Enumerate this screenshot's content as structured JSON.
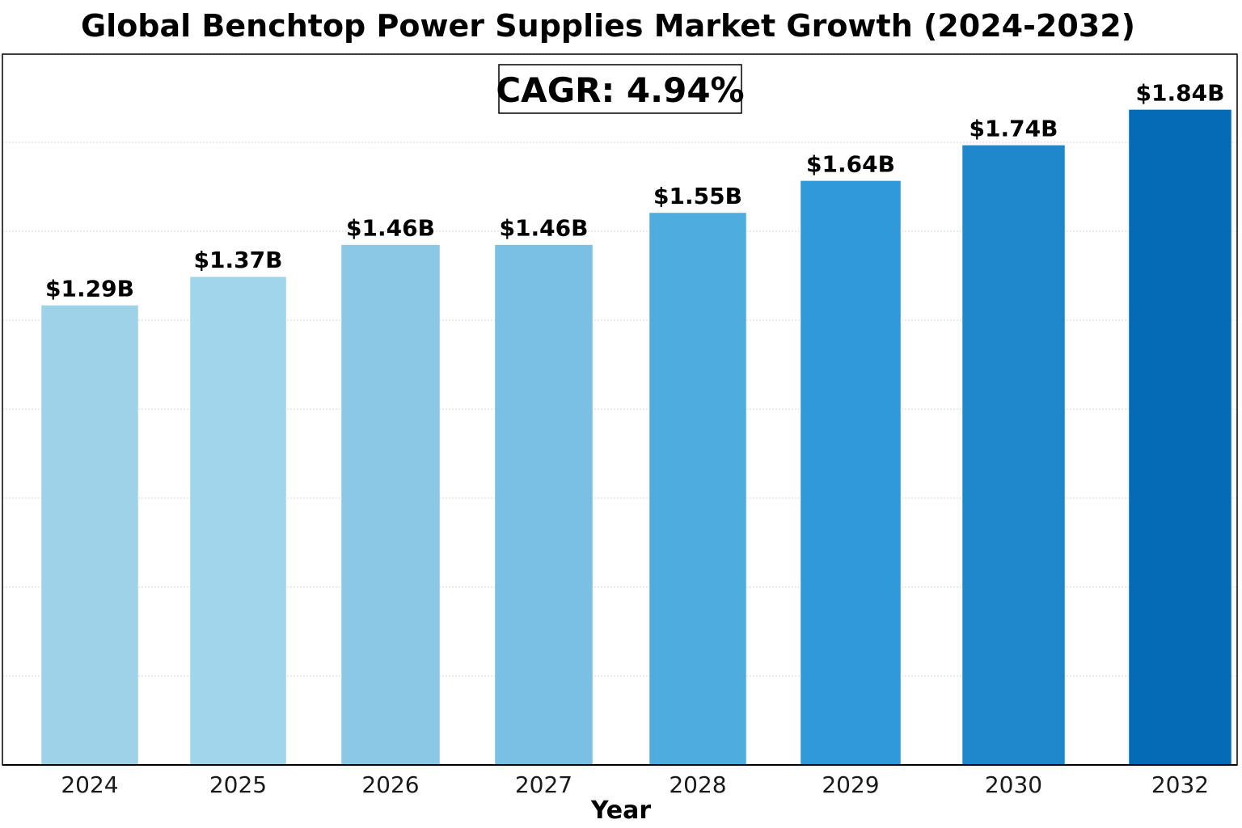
{
  "chart_data": {
    "type": "bar",
    "title": "Global Benchtop Power Supplies Market Growth (2024-2032)",
    "annotation": "CAGR: 4.94%",
    "xlabel": "Year",
    "ylabel": "",
    "categories": [
      "2024",
      "2025",
      "2026",
      "2027",
      "2028",
      "2029",
      "2030",
      "2032"
    ],
    "values": [
      1.29,
      1.37,
      1.46,
      1.46,
      1.55,
      1.64,
      1.74,
      1.84
    ],
    "value_labels": [
      "$1.29B",
      "$1.37B",
      "$1.46B",
      "$1.46B",
      "$1.55B",
      "$1.64B",
      "$1.74B",
      "$1.84B"
    ],
    "ylim": [
      0,
      2.0
    ],
    "bar_colors": [
      "#9dd2e9",
      "#a1d5eb",
      "#8ac8e6",
      "#7ac0e4",
      "#4fadde",
      "#3099d8",
      "#1f87cb",
      "#066bb6"
    ],
    "grid": true,
    "legend": "none"
  }
}
